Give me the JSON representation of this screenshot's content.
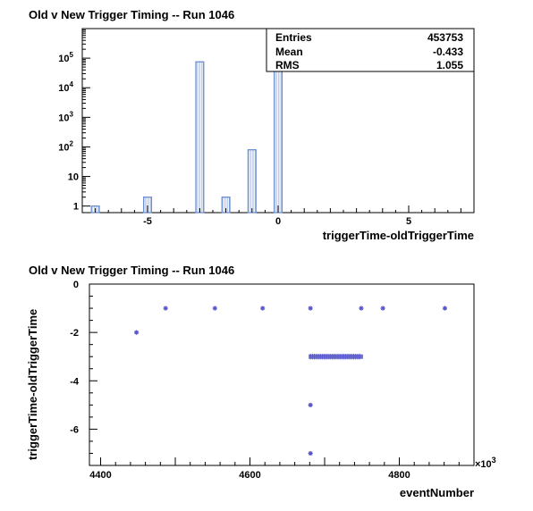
{
  "chart_data": [
    {
      "type": "bar",
      "title": "Old v New Trigger Timing -- Run 1046",
      "xlabel": "triggerTime-oldTriggerTime",
      "ylabel": "",
      "log_y": true,
      "xlim": [
        -7.5,
        7.5
      ],
      "ylim": [
        0.6,
        1000000
      ],
      "x_ticks": [
        -5,
        0,
        5
      ],
      "y_ticks": [
        {
          "v": 1,
          "base": "1",
          "exp": ""
        },
        {
          "v": 10,
          "base": "10",
          "exp": ""
        },
        {
          "v": 100,
          "base": "10",
          "exp": "2"
        },
        {
          "v": 1000,
          "base": "10",
          "exp": "3"
        },
        {
          "v": 10000,
          "base": "10",
          "exp": "4"
        },
        {
          "v": 100000,
          "base": "10",
          "exp": "5"
        }
      ],
      "bins": [
        {
          "x": -7,
          "count": 1
        },
        {
          "x": -5,
          "count": 2
        },
        {
          "x": -3,
          "count": 75000
        },
        {
          "x": -2,
          "count": 2
        },
        {
          "x": -1,
          "count": 80
        },
        {
          "x": 0,
          "count": 380000
        }
      ],
      "color": "#6c8fd0",
      "stats": [
        {
          "label": "Entries",
          "value": "453753"
        },
        {
          "label": "Mean",
          "value": "-0.433"
        },
        {
          "label": "RMS",
          "value": "1.055"
        }
      ]
    },
    {
      "type": "scatter",
      "title": "Old v New Trigger Timing -- Run 1046",
      "xlabel": "eventNumber",
      "ylabel": "triggerTime-oldTriggerTime",
      "x_multiplier": "×10",
      "x_multiplier_exp": "3",
      "xlim": [
        4385,
        4900
      ],
      "ylim": [
        -7.5,
        0
      ],
      "x_ticks": [
        4400,
        4600,
        4800
      ],
      "y_ticks": [
        -6,
        -4,
        -2,
        0
      ],
      "color": "#5555cc",
      "points": [
        {
          "x": 4448,
          "y": -2
        },
        {
          "x": 4487,
          "y": -1
        },
        {
          "x": 4553,
          "y": -1
        },
        {
          "x": 4617,
          "y": -1
        },
        {
          "x": 4681,
          "y": -1
        },
        {
          "x": 4749,
          "y": -1
        },
        {
          "x": 4778,
          "y": -1
        },
        {
          "x": 4861,
          "y": -1
        },
        {
          "x": 4681,
          "y": -5
        },
        {
          "x": 4681,
          "y": -7
        }
      ],
      "dense_band": {
        "x_start": 4681,
        "x_end": 4749,
        "y": -3
      }
    }
  ]
}
